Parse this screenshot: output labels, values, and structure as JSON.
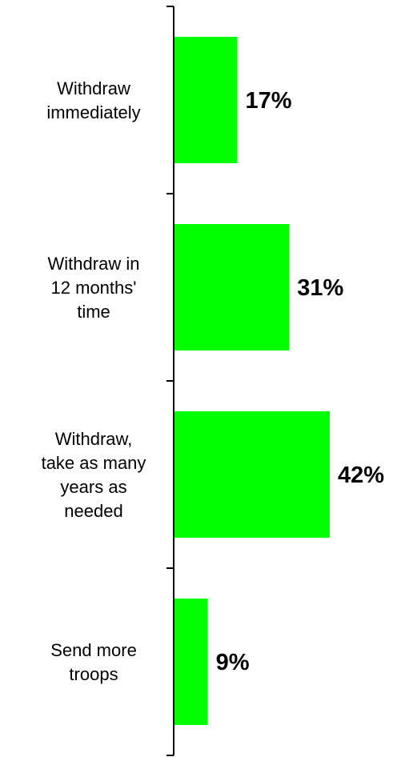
{
  "chart_data": {
    "type": "bar",
    "orientation": "horizontal",
    "categories": [
      [
        "Withdraw",
        "immediately"
      ],
      [
        "Withdraw in",
        "12 months'",
        "time"
      ],
      [
        "Withdraw,",
        "take as many",
        "years as",
        "needed"
      ],
      [
        "Send more",
        "troops"
      ]
    ],
    "values": [
      17,
      31,
      42,
      9
    ],
    "value_labels": [
      "17%",
      "31%",
      "42%",
      "9%"
    ],
    "unit": "%",
    "title": "",
    "xlabel": "",
    "ylabel": "",
    "xlim": [
      0,
      50
    ],
    "grid": false,
    "legend": "none",
    "bar_color": "#00FF00"
  }
}
